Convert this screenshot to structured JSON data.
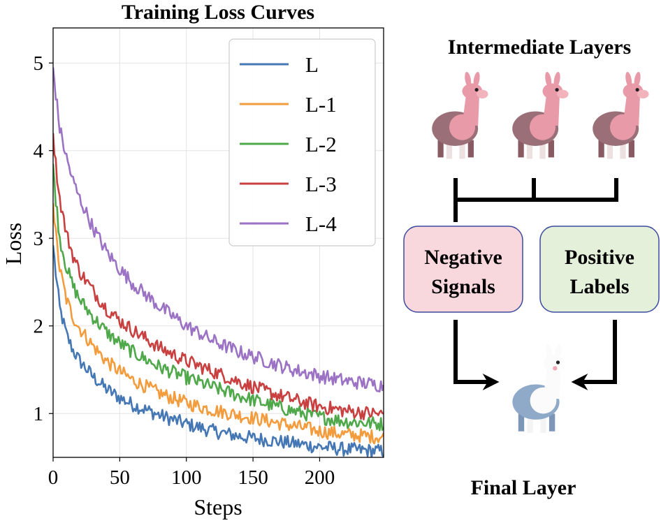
{
  "chart_data": {
    "type": "line",
    "title": "Training Loss Curves",
    "xlabel": "Steps",
    "ylabel": "Loss",
    "xlim": [
      0,
      248
    ],
    "ylim": [
      0.5,
      5.4
    ],
    "xticks": [
      0,
      50,
      100,
      150,
      200
    ],
    "yticks": [
      1,
      2,
      3,
      4,
      5
    ],
    "grid": true,
    "legend_position": "top-right",
    "x": [
      0,
      2,
      5,
      10,
      15,
      20,
      30,
      40,
      50,
      60,
      80,
      100,
      120,
      140,
      160,
      180,
      200,
      220,
      248
    ],
    "series": [
      {
        "name": "L",
        "color": "#4477b4",
        "values": [
          2.92,
          2.6,
          2.2,
          1.9,
          1.72,
          1.6,
          1.42,
          1.28,
          1.18,
          1.1,
          0.98,
          0.88,
          0.8,
          0.74,
          0.7,
          0.66,
          0.62,
          0.59,
          0.57
        ]
      },
      {
        "name": "L-1",
        "color": "#f39c3d",
        "values": [
          3.4,
          3.05,
          2.65,
          2.3,
          2.1,
          1.97,
          1.77,
          1.6,
          1.48,
          1.38,
          1.23,
          1.12,
          1.04,
          0.98,
          0.92,
          0.86,
          0.8,
          0.76,
          0.73
        ]
      },
      {
        "name": "L-2",
        "color": "#4fa84a",
        "values": [
          3.85,
          3.45,
          3.0,
          2.67,
          2.45,
          2.3,
          2.1,
          1.93,
          1.8,
          1.7,
          1.53,
          1.41,
          1.3,
          1.2,
          1.11,
          1.03,
          0.96,
          0.91,
          0.88
        ]
      },
      {
        "name": "L-3",
        "color": "#c94040",
        "values": [
          4.2,
          3.85,
          3.45,
          3.05,
          2.8,
          2.62,
          2.4,
          2.2,
          2.06,
          1.95,
          1.75,
          1.6,
          1.48,
          1.36,
          1.25,
          1.16,
          1.08,
          1.03,
          0.99
        ]
      },
      {
        "name": "L-4",
        "color": "#9b72c4",
        "values": [
          4.95,
          4.65,
          4.25,
          3.92,
          3.65,
          3.45,
          3.12,
          2.85,
          2.65,
          2.48,
          2.22,
          2.0,
          1.83,
          1.7,
          1.6,
          1.5,
          1.43,
          1.37,
          1.32
        ]
      }
    ]
  },
  "diagram": {
    "intermediate_title": "Intermediate Layers",
    "negative_label_line1": "Negative",
    "negative_label_line2": "Signals",
    "positive_label_line1": "Positive",
    "positive_label_line2": "Labels",
    "final_title": "Final Layer",
    "colors": {
      "negative_fill": "#f8d7dd",
      "positive_fill": "#e4f0da",
      "box_border": "#3b4a9e",
      "llama_pink": "#e89aa8",
      "llama_dark": "#9a6f78",
      "llama_white": "#fbfbfb",
      "llama_blue": "#8fa9c9"
    }
  }
}
